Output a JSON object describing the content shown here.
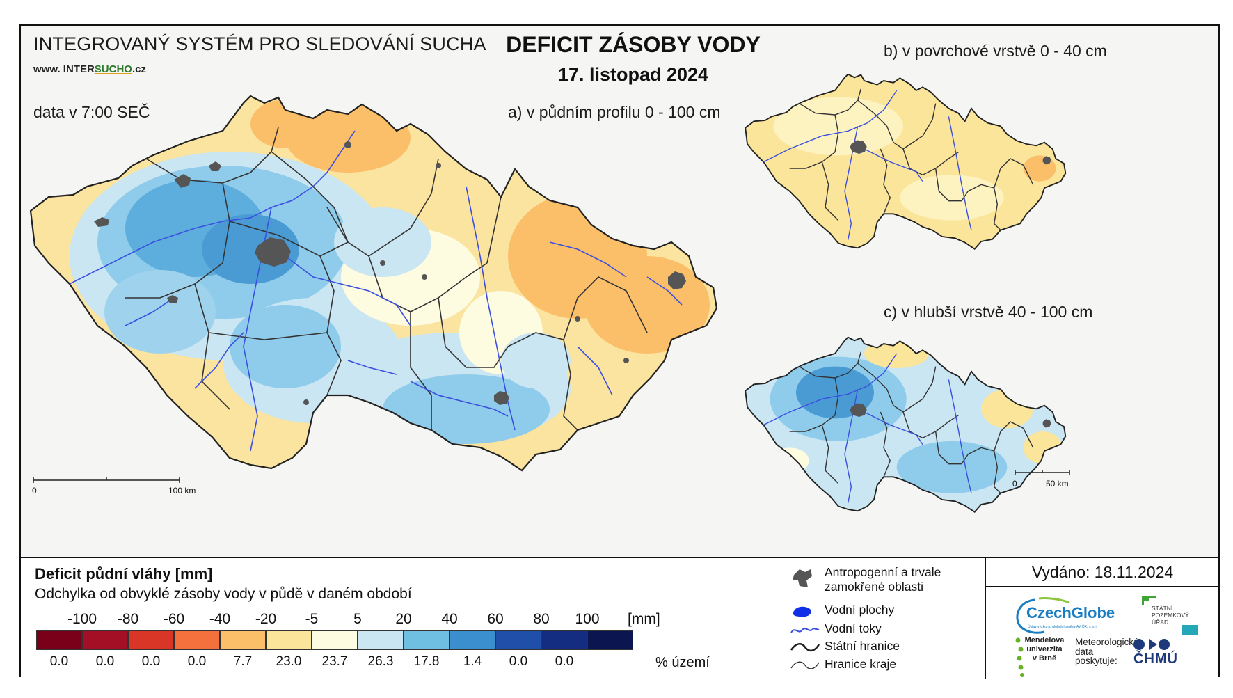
{
  "header": {
    "system_name": "INTEGROVANÝ SYSTÉM PRO SLEDOVÁNÍ SUCHA",
    "website_prefix": "www. INTER",
    "website_brand": "SUCHO",
    "website_suffix": ".cz",
    "data_time": "data v 7:00 SEČ",
    "title": "DEFICIT ZÁSOBY VODY",
    "date": "17. listopad 2024"
  },
  "maps": {
    "main": {
      "caption": "a) v půdním profilu 0 - 100 cm",
      "scale_start": "0",
      "scale_end": "100 km"
    },
    "top": {
      "caption": "b) v povrchové vrstvě 0 - 40 cm"
    },
    "bottom": {
      "caption": "c) v hlubší vrstvě 40 - 100 cm",
      "scale_start": "0",
      "scale_end": "50 km"
    }
  },
  "legend": {
    "title": "Deficit půdní vláhy  [mm]",
    "subtitle": "Odchylka od obvyklé zásoby vody v půdě v daném období",
    "bounds": [
      "-100",
      "-80",
      "-60",
      "-40",
      "-20",
      "-5",
      "5",
      "20",
      "40",
      "60",
      "80",
      "100"
    ],
    "unit": "[mm]",
    "classes": [
      {
        "color": "#7a0019",
        "pct": "0.0"
      },
      {
        "color": "#a50f25",
        "pct": "0.0"
      },
      {
        "color": "#d93628",
        "pct": "0.0"
      },
      {
        "color": "#f4703c",
        "pct": "0.0"
      },
      {
        "color": "#fbbf6a",
        "pct": "7.7"
      },
      {
        "color": "#fbe59b",
        "pct": "23.0"
      },
      {
        "color": "#fdfbe0",
        "pct": "23.7"
      },
      {
        "color": "#c9e6f2",
        "pct": "26.3"
      },
      {
        "color": "#6fbfe3",
        "pct": "17.8"
      },
      {
        "color": "#3b8fce",
        "pct": "1.4"
      },
      {
        "color": "#1f4fa8",
        "pct": "0.0"
      },
      {
        "color": "#142d80",
        "pct": "0.0"
      },
      {
        "color": "#0b1550",
        "pct": ""
      }
    ],
    "pct_unit": "% území"
  },
  "symbols": {
    "anthropogenic": "Antropogenní a trvale zamokřené oblasti",
    "water_bodies": "Vodní plochy",
    "streams": "Vodní toky",
    "state_border": "Státní hranice",
    "region_border": "Hranice kraje"
  },
  "issued": "Vydáno: 18.11.2024",
  "logos": {
    "czechglobe": "CzechGlobe",
    "czechglobe_sub": "Ústav výzkumu globální změny AV ČR, v. v. i.",
    "spu": "STÁTNÍ POZEMKOVÝ ÚŘAD",
    "mendel": "Mendelova univerzita v Brně",
    "meteo": "Meteorologická data poskytuje:",
    "chmu": "ČHMÚ"
  }
}
